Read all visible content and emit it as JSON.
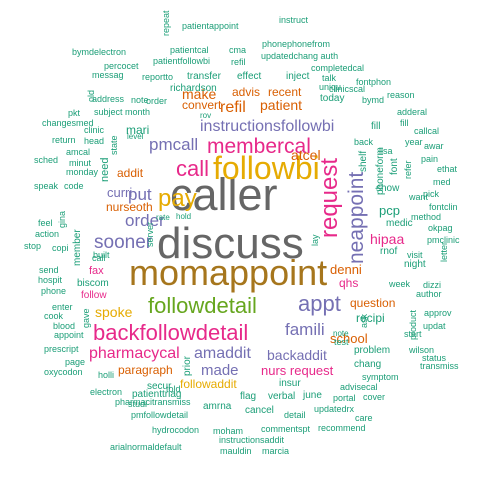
{
  "palette": [
    "#1b9e77",
    "#d95f02",
    "#7570b3",
    "#e7298a",
    "#66a61e",
    "#e6ab02",
    "#a6761d",
    "#666666"
  ],
  "words": [
    {
      "text": "discuss",
      "color": "#666666"
    },
    {
      "text": "caller",
      "color": "#666666"
    },
    {
      "text": "momappoint",
      "color": "#a6761d"
    },
    {
      "text": "followbi",
      "color": "#e6ab02"
    },
    {
      "text": "membercal",
      "color": "#e7298a"
    },
    {
      "text": "call",
      "color": "#e7298a"
    },
    {
      "text": "pay",
      "color": "#e6ab02"
    },
    {
      "text": "followdetail",
      "color": "#66a61e"
    },
    {
      "text": "backfollowdetail",
      "color": "#e7298a"
    },
    {
      "text": "instructionsfollowbi",
      "color": "#7570b3"
    },
    {
      "text": "appt",
      "color": "#7570b3"
    },
    {
      "text": "request",
      "color": "#e7298a"
    },
    {
      "text": "neappoint",
      "color": "#7570b3"
    },
    {
      "text": "sooner",
      "color": "#7570b3"
    },
    {
      "text": "pharmacycal",
      "color": "#e7298a"
    },
    {
      "text": "famili",
      "color": "#7570b3"
    },
    {
      "text": "amaddit",
      "color": "#7570b3"
    },
    {
      "text": "backaddit",
      "color": "#7570b3"
    },
    {
      "text": "order",
      "color": "#7570b3"
    },
    {
      "text": "pmcall",
      "color": "#7570b3"
    },
    {
      "text": "atcel",
      "color": "#d95f02"
    },
    {
      "text": "refil",
      "color": "#d95f02"
    },
    {
      "text": "patient",
      "color": "#d95f02"
    },
    {
      "text": "made",
      "color": "#7570b3"
    },
    {
      "text": "put",
      "color": "#7570b3"
    },
    {
      "text": "spoke",
      "color": "#e6ab02"
    },
    {
      "text": "school",
      "color": "#d95f02"
    },
    {
      "text": "paragraph",
      "color": "#d95f02"
    },
    {
      "text": "nurs request",
      "color": "#e7298a"
    },
    {
      "text": "followaddit",
      "color": "#e6ab02"
    },
    {
      "text": "curri",
      "color": "#7570b3"
    },
    {
      "text": "nurseoth",
      "color": "#d95f02"
    },
    {
      "text": "hipaa",
      "color": "#e7298a"
    },
    {
      "text": "denni",
      "color": "#d95f02"
    },
    {
      "text": "question",
      "color": "#d95f02"
    },
    {
      "text": "qhs",
      "color": "#e7298a"
    },
    {
      "text": "recipi",
      "color": "#1b9e77"
    },
    {
      "text": "pcp",
      "color": "#1b9e77"
    },
    {
      "text": "make",
      "color": "#d95f02"
    },
    {
      "text": "convert",
      "color": "#d95f02"
    },
    {
      "text": "advis",
      "color": "#d95f02"
    },
    {
      "text": "recent",
      "color": "#d95f02"
    },
    {
      "text": "addit",
      "color": "#d95f02"
    },
    {
      "text": "mari",
      "color": "#1b9e77"
    },
    {
      "text": "fax",
      "color": "#e7298a"
    },
    {
      "text": "member",
      "color": "#1b9e77"
    },
    {
      "text": "need",
      "color": "#1b9e77"
    },
    {
      "text": "pharmacitransmiss",
      "color": "#1b9e77"
    },
    {
      "text": "today",
      "color": "#1b9e77"
    },
    {
      "text": "verbal",
      "color": "#1b9e77"
    },
    {
      "text": "fill",
      "color": "#1b9e77"
    },
    {
      "text": "shelf",
      "color": "#1b9e77"
    },
    {
      "text": "phoneform",
      "color": "#1b9e77"
    },
    {
      "text": "font",
      "color": "#1b9e77"
    },
    {
      "text": "show",
      "color": "#1b9e77"
    },
    {
      "text": "medic",
      "color": "#1b9e77"
    },
    {
      "text": "rnof",
      "color": "#1b9e77"
    },
    {
      "text": "night",
      "color": "#1b9e77"
    },
    {
      "text": "week",
      "color": "#1b9e77"
    },
    {
      "text": "start",
      "color": "#1b9e77"
    },
    {
      "text": "problem",
      "color": "#1b9e77"
    },
    {
      "text": "chang",
      "color": "#1b9e77"
    },
    {
      "text": "test",
      "color": "#1b9e77"
    },
    {
      "text": "insur",
      "color": "#1b9e77"
    },
    {
      "text": "june",
      "color": "#1b9e77"
    },
    {
      "text": "flag",
      "color": "#1b9e77"
    },
    {
      "text": "cancel",
      "color": "#1b9e77"
    },
    {
      "text": "amrna",
      "color": "#1b9e77"
    },
    {
      "text": "prior",
      "color": "#1b9e77"
    },
    {
      "text": "secur",
      "color": "#1b9e77"
    },
    {
      "text": "patienttriag",
      "color": "#1b9e77"
    },
    {
      "text": "told",
      "color": "#1b9e77"
    },
    {
      "text": "biscom",
      "color": "#1b9e77"
    },
    {
      "text": "follow",
      "color": "#e7298a"
    },
    {
      "text": "transfer",
      "color": "#1b9e77"
    },
    {
      "text": "effect",
      "color": "#1b9e77"
    },
    {
      "text": "inject",
      "color": "#1b9e77"
    },
    {
      "text": "richardson",
      "color": "#1b9e77"
    },
    {
      "text": "order",
      "color": "#1b9e77"
    },
    {
      "text": "address",
      "color": "#1b9e77"
    },
    {
      "text": "note",
      "color": "#1b9e77"
    },
    {
      "text": "subject",
      "color": "#1b9e77"
    },
    {
      "text": "month",
      "color": "#1b9e77"
    },
    {
      "text": "clinic",
      "color": "#1b9e77"
    },
    {
      "text": "monday",
      "color": "#1b9e77"
    },
    {
      "text": "patientappoint",
      "color": "#1b9e77"
    },
    {
      "text": "instruct",
      "color": "#1b9e77"
    },
    {
      "text": "patientcal",
      "color": "#1b9e77"
    },
    {
      "text": "cma",
      "color": "#1b9e77"
    },
    {
      "text": "phonephonefrom",
      "color": "#1b9e77"
    },
    {
      "text": "patientfollowbi",
      "color": "#1b9e77"
    },
    {
      "text": "updatedchang auth",
      "color": "#1b9e77"
    },
    {
      "text": "refil",
      "color": "#1b9e77"
    },
    {
      "text": "completedcal",
      "color": "#1b9e77"
    },
    {
      "text": "bymdelectron",
      "color": "#1b9e77"
    },
    {
      "text": "percocet",
      "color": "#1b9e77"
    },
    {
      "text": "messag",
      "color": "#1b9e77"
    },
    {
      "text": "pkt",
      "color": "#1b9e77"
    },
    {
      "text": "changesmed",
      "color": "#1b9e77"
    },
    {
      "text": "return",
      "color": "#1b9e77"
    },
    {
      "text": "head",
      "color": "#1b9e77"
    },
    {
      "text": "sched",
      "color": "#1b9e77"
    },
    {
      "text": "minut",
      "color": "#1b9e77"
    },
    {
      "text": "amcal",
      "color": "#1b9e77"
    },
    {
      "text": "speak",
      "color": "#1b9e77"
    },
    {
      "text": "code",
      "color": "#1b9e77"
    },
    {
      "text": "feel",
      "color": "#1b9e77"
    },
    {
      "text": "gina",
      "color": "#1b9e77"
    },
    {
      "text": "action",
      "color": "#1b9e77"
    },
    {
      "text": "stop",
      "color": "#1b9e77"
    },
    {
      "text": "copi",
      "color": "#1b9e77"
    },
    {
      "text": "send",
      "color": "#1b9e77"
    },
    {
      "text": "hospit",
      "color": "#1b9e77"
    },
    {
      "text": "phone",
      "color": "#1b9e77"
    },
    {
      "text": "enter",
      "color": "#1b9e77"
    },
    {
      "text": "cook",
      "color": "#1b9e77"
    },
    {
      "text": "blood",
      "color": "#1b9e77"
    },
    {
      "text": "appoint",
      "color": "#1b9e77"
    },
    {
      "text": "gave",
      "color": "#1b9e77"
    },
    {
      "text": "prescript",
      "color": "#1b9e77"
    },
    {
      "text": "page",
      "color": "#1b9e77"
    },
    {
      "text": "oxycodon",
      "color": "#1b9e77"
    },
    {
      "text": "holli",
      "color": "#1b9e77"
    },
    {
      "text": "electron",
      "color": "#1b9e77"
    },
    {
      "text": "pmfollowdetail",
      "color": "#1b9e77"
    },
    {
      "text": "hydrocodon",
      "color": "#1b9e77"
    },
    {
      "text": "moham",
      "color": "#1b9e77"
    },
    {
      "text": "arialnormaldefault",
      "color": "#1b9e77"
    },
    {
      "text": "instructionsaddit",
      "color": "#1b9e77"
    },
    {
      "text": "mauldin",
      "color": "#1b9e77"
    },
    {
      "text": "marcia",
      "color": "#1b9e77"
    },
    {
      "text": "commentspt",
      "color": "#1b9e77"
    },
    {
      "text": "recommend",
      "color": "#1b9e77"
    },
    {
      "text": "detail",
      "color": "#1b9e77"
    },
    {
      "text": "updatedrx",
      "color": "#1b9e77"
    },
    {
      "text": "portal",
      "color": "#1b9e77"
    },
    {
      "text": "cover",
      "color": "#1b9e77"
    },
    {
      "text": "care",
      "color": "#1b9e77"
    },
    {
      "text": "advisecal",
      "color": "#1b9e77"
    },
    {
      "text": "symptom",
      "color": "#1b9e77"
    },
    {
      "text": "wilson",
      "color": "#1b9e77"
    },
    {
      "text": "product",
      "color": "#1b9e77"
    },
    {
      "text": "updat",
      "color": "#1b9e77"
    },
    {
      "text": "approv",
      "color": "#1b9e77"
    },
    {
      "text": "author",
      "color": "#1b9e77"
    },
    {
      "text": "status",
      "color": "#1b9e77"
    },
    {
      "text": "dizzi",
      "color": "#1b9e77"
    },
    {
      "text": "transmiss",
      "color": "#1b9e77"
    },
    {
      "text": "visit",
      "color": "#1b9e77"
    },
    {
      "text": "letter",
      "color": "#1b9e77"
    },
    {
      "text": "pmclinic",
      "color": "#1b9e77"
    },
    {
      "text": "method",
      "color": "#1b9e77"
    },
    {
      "text": "fontclin",
      "color": "#1b9e77"
    },
    {
      "text": "okpag",
      "color": "#1b9e77"
    },
    {
      "text": "pick",
      "color": "#1b9e77"
    },
    {
      "text": "want",
      "color": "#1b9e77"
    },
    {
      "text": "med",
      "color": "#1b9e77"
    },
    {
      "text": "ethat",
      "color": "#1b9e77"
    },
    {
      "text": "pain",
      "color": "#1b9e77"
    },
    {
      "text": "year",
      "color": "#1b9e77"
    },
    {
      "text": "awar",
      "color": "#1b9e77"
    },
    {
      "text": "callcal",
      "color": "#1b9e77"
    },
    {
      "text": "fill",
      "color": "#1b9e77"
    },
    {
      "text": "adderal",
      "color": "#1b9e77"
    },
    {
      "text": "bymd",
      "color": "#1b9e77"
    },
    {
      "text": "reason",
      "color": "#1b9e77"
    },
    {
      "text": "fontphon",
      "color": "#1b9e77"
    },
    {
      "text": "clinicscal",
      "color": "#1b9e77"
    },
    {
      "text": "talk",
      "color": "#1b9e77"
    },
    {
      "text": "uniqu",
      "color": "#1b9e77"
    },
    {
      "text": "repeat",
      "color": "#1b9e77"
    },
    {
      "text": "reportto",
      "color": "#1b9e77"
    },
    {
      "text": "lisa",
      "color": "#1b9e77"
    },
    {
      "text": "refer",
      "color": "#1b9e77"
    },
    {
      "text": "back",
      "color": "#1b9e77"
    },
    {
      "text": "studi",
      "color": "#1b9e77"
    },
    {
      "text": "built",
      "color": "#1b9e77"
    },
    {
      "text": "server",
      "color": "#1b9e77"
    },
    {
      "text": "rate",
      "color": "#1b9e77"
    },
    {
      "text": "hold",
      "color": "#1b9e77"
    },
    {
      "text": "state",
      "color": "#1b9e77"
    },
    {
      "text": "level",
      "color": "#1b9e77"
    },
    {
      "text": "call",
      "color": "#1b9e77"
    },
    {
      "text": "lay",
      "color": "#1b9e77"
    },
    {
      "text": "ask",
      "color": "#1b9e77"
    },
    {
      "text": "rov",
      "color": "#1b9e77"
    },
    {
      "text": "note",
      "color": "#1b9e77"
    },
    {
      "text": "old",
      "color": "#1b9e77"
    }
  ]
}
